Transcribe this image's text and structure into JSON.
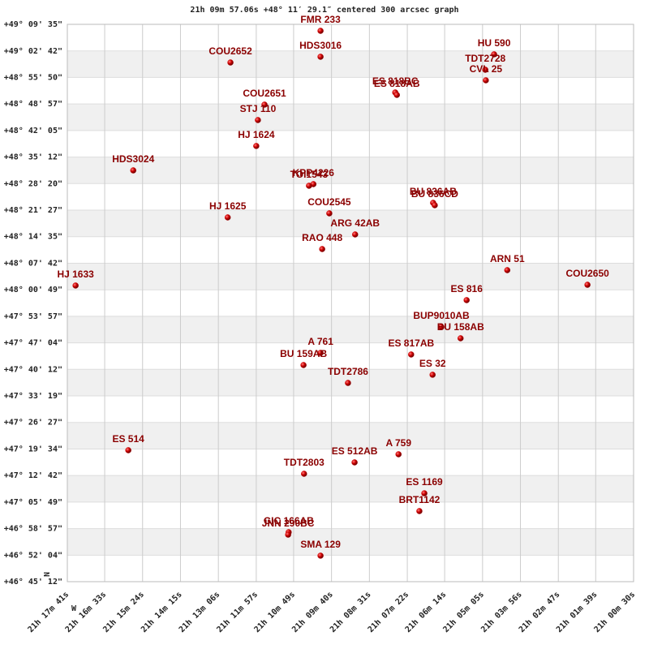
{
  "chart_data": {
    "type": "scatter",
    "title": "21h 09m 57.06s +48° 11′ 29.1″ centered 300 arcsec graph",
    "annotations": [
      "N",
      "W"
    ],
    "color": "#cc0000",
    "label_color": "#8b0000",
    "grid": true,
    "labels": [
      "FMR 233",
      "HDS3016",
      "HU  590",
      "TDT2728",
      "CVL  25",
      "COU2652",
      "ES  818BC",
      "ES  818AB",
      "COU2651",
      "STJ 110",
      "HJ 1624",
      "HDS3024",
      "KPP4226",
      "TOI1543",
      "COU2545",
      "BU  836AB",
      "BU  836CD",
      "HJ 1625",
      "ARG  42AB",
      "RAO 448",
      "ARN  51",
      "COU2650",
      "HJ 1633",
      "ES  816",
      "BUP9010AB",
      "BU  158AB",
      "A   761",
      "BU  159AB",
      "ES  817AB",
      "ES   32",
      "TDT2786",
      "ES  514",
      "A   759",
      "ES  512AB",
      "TDT2803",
      "ES 1169",
      "BRT1142",
      "GIC 166AB",
      "JNN 290BC",
      "SMA 129"
    ],
    "x": [
      76200,
      76200,
      75884,
      75900,
      75899,
      76364,
      76064,
      76061,
      76302,
      76314,
      76317,
      76541,
      76213,
      76221,
      76184,
      75995,
      75992,
      76369,
      76137,
      76197,
      75860,
      75714,
      76646,
      75934,
      75980,
      75945,
      76200,
      76231,
      76035,
      75996,
      76150,
      76550,
      76058,
      76138,
      76230,
      76011,
      76020,
      76258,
      76259,
      76200
    ],
    "y": [
      176874,
      176471,
      176509,
      176269,
      176105,
      176382,
      175916,
      175878,
      175727,
      175487,
      175084,
      174705,
      174491,
      174466,
      174037,
      174201,
      174163,
      173974,
      173709,
      173482,
      173154,
      172927,
      172915,
      172688,
      172272,
      172095,
      171868,
      171679,
      171843,
      171528,
      171401,
      170355,
      170292,
      170166,
      169989,
      169686,
      169409,
      169081,
      169043,
      168716
    ],
    "xlim": [
      76661,
      75630
    ],
    "ylim": [
      168312,
      176975
    ],
    "xticks": [
      {
        "value": 76661,
        "label": "21h 17m 41s"
      },
      {
        "value": 76593,
        "label": "21h 16m 33s"
      },
      {
        "value": 76524,
        "label": "21h 15m 24s"
      },
      {
        "value": 76455,
        "label": "21h 14m 15s"
      },
      {
        "value": 76386,
        "label": "21h 13m 06s"
      },
      {
        "value": 76317,
        "label": "21h 11m 57s"
      },
      {
        "value": 76249,
        "label": "21h 10m 49s"
      },
      {
        "value": 76180,
        "label": "21h 09m 40s"
      },
      {
        "value": 76111,
        "label": "21h 08m 31s"
      },
      {
        "value": 76042,
        "label": "21h 07m 22s"
      },
      {
        "value": 75974,
        "label": "21h 06m 14s"
      },
      {
        "value": 75905,
        "label": "21h 05m 05s"
      },
      {
        "value": 75836,
        "label": "21h 03m 56s"
      },
      {
        "value": 75767,
        "label": "21h 02m 47s"
      },
      {
        "value": 75699,
        "label": "21h 01m 39s"
      },
      {
        "value": 75630,
        "label": "21h 00m 30s"
      }
    ],
    "yticks": [
      {
        "value": 176975,
        "label": "+49° 09' 35\""
      },
      {
        "value": 176562,
        "label": "+49° 02' 42\""
      },
      {
        "value": 176150,
        "label": "+48° 55' 50\""
      },
      {
        "value": 175737,
        "label": "+48° 48' 57\""
      },
      {
        "value": 175325,
        "label": "+48° 42' 05\""
      },
      {
        "value": 174912,
        "label": "+48° 35' 12\""
      },
      {
        "value": 174500,
        "label": "+48° 28' 20\""
      },
      {
        "value": 174087,
        "label": "+48° 21' 27\""
      },
      {
        "value": 173675,
        "label": "+48° 14' 35\""
      },
      {
        "value": 173262,
        "label": "+48° 07' 42\""
      },
      {
        "value": 172849,
        "label": "+48° 00' 49\""
      },
      {
        "value": 172437,
        "label": "+47° 53' 57\""
      },
      {
        "value": 172024,
        "label": "+47° 47' 04\""
      },
      {
        "value": 171612,
        "label": "+47° 40' 12\""
      },
      {
        "value": 171199,
        "label": "+47° 33' 19\""
      },
      {
        "value": 170787,
        "label": "+47° 26' 27\""
      },
      {
        "value": 170374,
        "label": "+47° 19' 34\""
      },
      {
        "value": 169962,
        "label": "+47° 12' 42\""
      },
      {
        "value": 169549,
        "label": "+47° 05' 49\""
      },
      {
        "value": 169137,
        "label": "+46° 58' 57\""
      },
      {
        "value": 168724,
        "label": "+46° 52' 04\""
      },
      {
        "value": 168312,
        "label": "+46° 45' 12\""
      }
    ]
  }
}
